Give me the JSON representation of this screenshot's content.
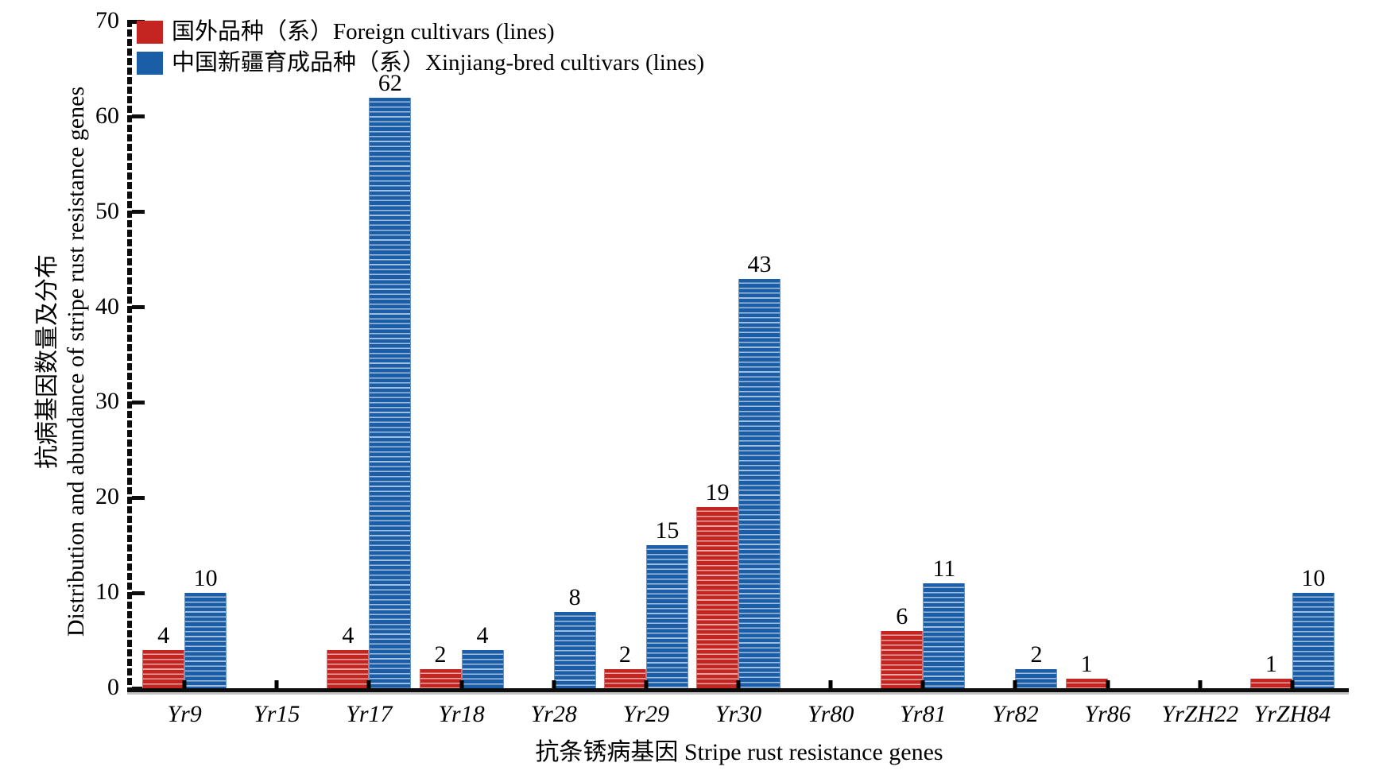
{
  "legend": {
    "items": [
      {
        "key": "foreign",
        "label": "国外品种（系）Foreign cultivars (lines)",
        "color": "#c42521"
      },
      {
        "key": "xinjiang",
        "label": "中国新疆育成品种（系）Xinjiang-bred cultivars (lines)",
        "color": "#1b5ea8"
      }
    ]
  },
  "y_axis": {
    "title_zh": "抗病基因数量及分布",
    "title_en": "Distribution and abundance of stripe rust resistance genes",
    "ticks": [
      0,
      10,
      20,
      30,
      40,
      50,
      60,
      70
    ]
  },
  "x_axis": {
    "title": "抗条锈病基因 Stripe rust resistance genes"
  },
  "colors": {
    "foreign_red": "#c42521",
    "xinjiang_blue": "#1b5ea8",
    "axis_black": "#0d0d0d"
  },
  "chart_data": {
    "type": "bar",
    "title": "",
    "xlabel": "抗条锈病基因 Stripe rust resistance genes",
    "ylabel_zh": "抗病基因数量及分布",
    "ylabel_en": "Distribution and abundance of stripe rust resistance genes",
    "categories": [
      "Yr9",
      "Yr15",
      "Yr17",
      "Yr18",
      "Yr28",
      "Yr29",
      "Yr30",
      "Yr80",
      "Yr81",
      "Yr82",
      "Yr86",
      "YrZH22",
      "YrZH84"
    ],
    "series": [
      {
        "name": "国外品种（系）Foreign cultivars (lines)",
        "color": "#c42521",
        "values": [
          4,
          0,
          4,
          2,
          0,
          2,
          19,
          0,
          6,
          0,
          1,
          0,
          1
        ]
      },
      {
        "name": "中国新疆育成品种（系）Xinjiang-bred cultivars (lines)",
        "color": "#1b5ea8",
        "values": [
          10,
          0,
          62,
          4,
          8,
          15,
          43,
          0,
          11,
          2,
          0,
          0,
          10
        ]
      }
    ],
    "ylim": [
      0,
      70
    ],
    "ytick_step": 10,
    "minor_ytick_step": 1,
    "bar_value_labels_shown_when_nonzero": true,
    "hatch": "horizontal-lines",
    "grid": false,
    "legend_position": "top-left"
  }
}
